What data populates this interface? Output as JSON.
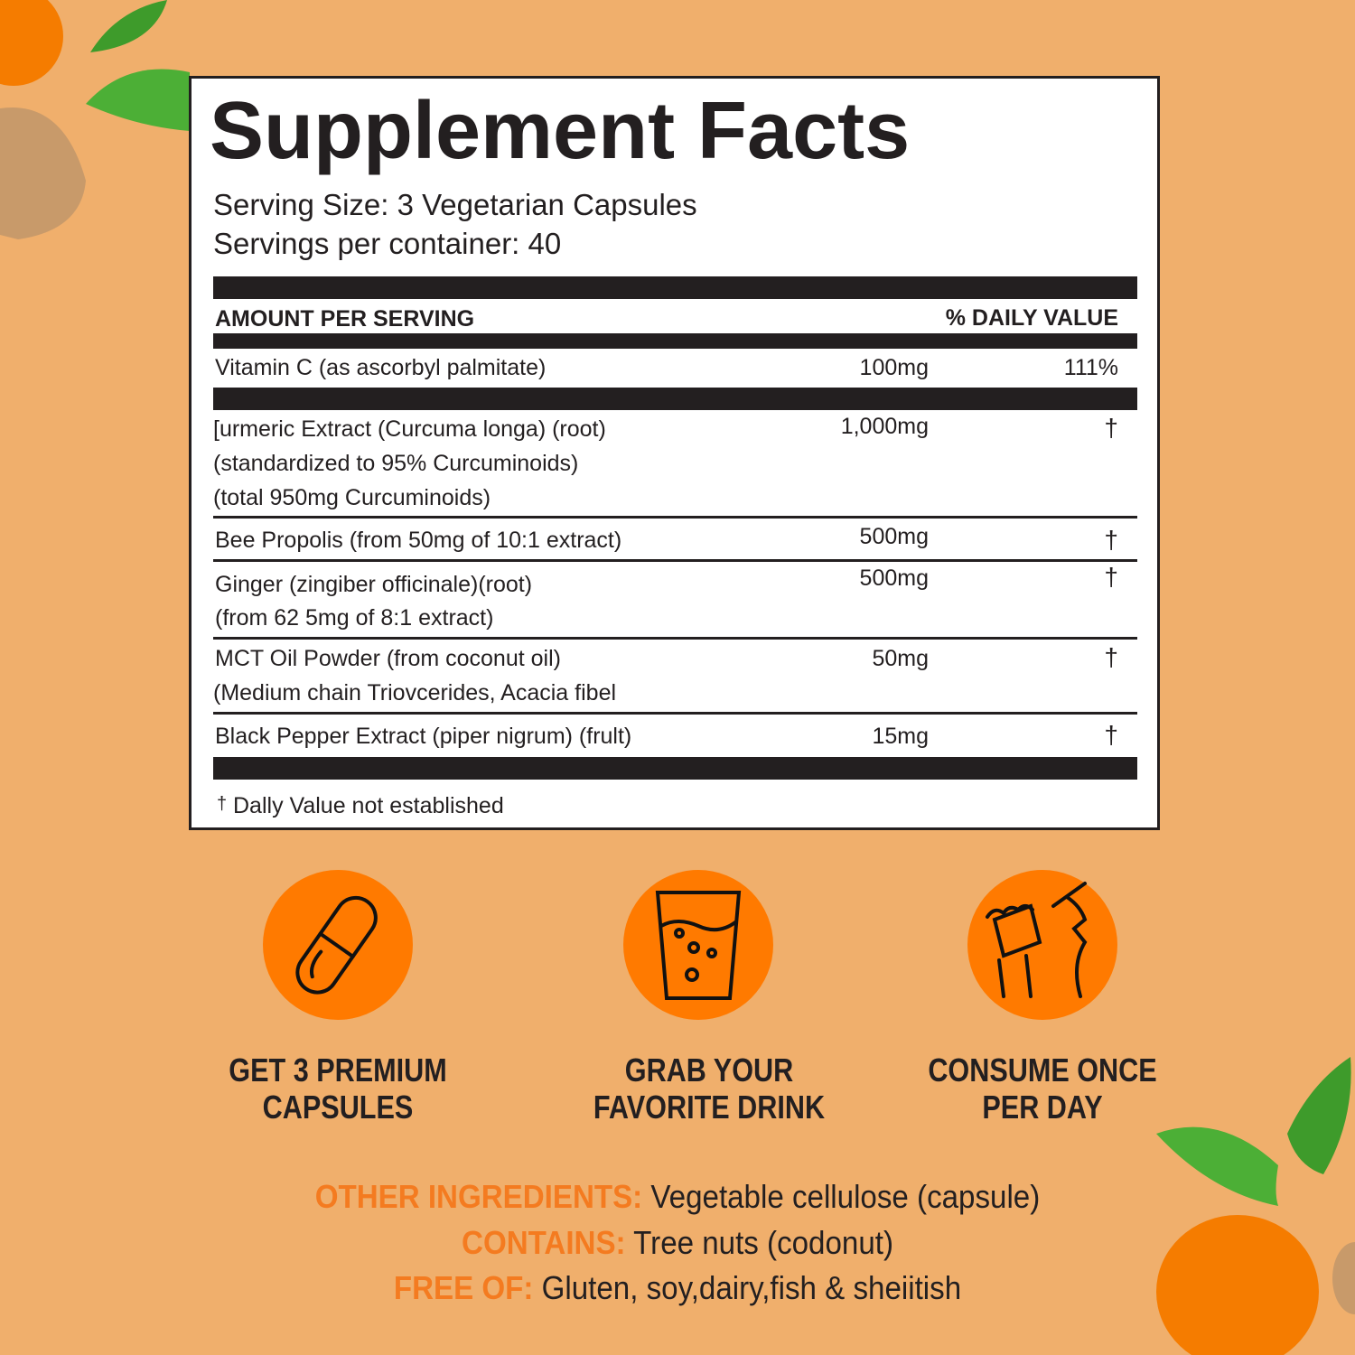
{
  "label": {
    "title": "Supplement Facts",
    "serving_size": "Serving Size: 3 Vegetarian Capsules",
    "servings_per_container": "Servings per container: 40",
    "header_amount": "AMOUNT PER SERVING",
    "header_dv": "% DAILY VALUE",
    "rows": [
      {
        "lines": [
          "Vitamin C (as ascorbyl palmitate)"
        ],
        "amount": "100mg",
        "dv": "111%"
      },
      {
        "lines": [
          "[urmeric Extract (Curcuma longa) (root)",
          "(standardized to 95% Curcuminoids)",
          "(total 950mg Curcuminoids)"
        ],
        "amount": "1,000mg",
        "dv": "†"
      },
      {
        "lines": [
          "Bee Propolis (from 50mg of 10:1 extract)"
        ],
        "amount": "500mg",
        "dv": "†"
      },
      {
        "lines": [
          "Ginger (zingiber officinale)(root)",
          "(from 62 5mg of 8:1 extract)"
        ],
        "amount": "500mg",
        "dv": "†"
      },
      {
        "lines": [
          "MCT Oil Powder (from coconut oil)",
          "(Medium chain Triovcerides, Acacia fibel"
        ],
        "amount": "50mg",
        "dv": "†"
      },
      {
        "lines": [
          "Black Pepper Extract (piper nigrum) (frult)"
        ],
        "amount": "15mg",
        "dv": "†"
      }
    ],
    "footnote_symbol": "†",
    "footnote": "Dally Value not established"
  },
  "steps": [
    {
      "icon": "capsule-icon",
      "line1": "GET 3 PREMIUM",
      "line2": "CAPSULES"
    },
    {
      "icon": "drink-glass-icon",
      "line1": "GRAB YOUR",
      "line2": "FAVORITE DRINK"
    },
    {
      "icon": "take-capsule-icon",
      "line1": "CONSUME ONCE",
      "line2": "PER DAY"
    }
  ],
  "info": {
    "other_key": "OTHER INGREDIENTS:",
    "other_val": " Vegetable cellulose (capsule)",
    "contains_key": "CONTAINS:",
    "contains_val": " Tree nuts (codonut)",
    "free_key": "FREE OF:",
    "free_val": " Gluten, soy,dairy,fish & sheiitish"
  },
  "colors": {
    "background": "#F0AF6C",
    "accent": "#FF7A00",
    "accent_text": "#F47B20",
    "ink": "#231f20"
  }
}
